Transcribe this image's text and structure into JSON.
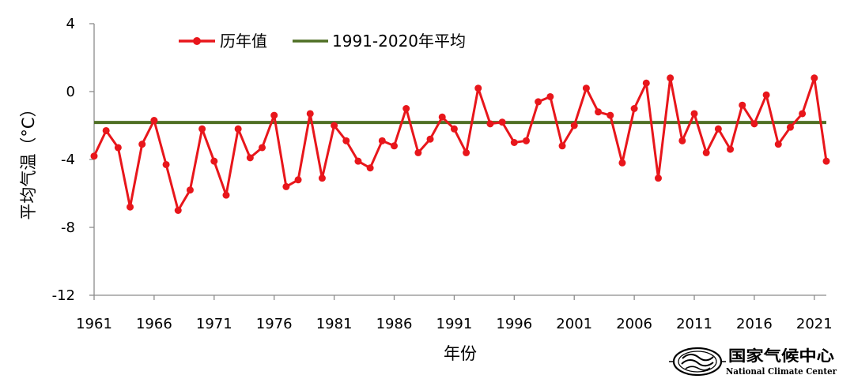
{
  "chart_data": {
    "type": "line",
    "title": "",
    "xlabel": "年份",
    "ylabel": "平均气温（°C）",
    "ylim": [
      -12,
      4
    ],
    "yticks": [
      "4",
      "0",
      "-4",
      "-8",
      "-12"
    ],
    "ytick_values": [
      4,
      0,
      -4,
      -8,
      -12
    ],
    "xlim": [
      1961,
      2022
    ],
    "xticks": [
      "1961",
      "1966",
      "1971",
      "1976",
      "1981",
      "1986",
      "1991",
      "1996",
      "2001",
      "2006",
      "2011",
      "2016",
      "2021"
    ],
    "xtick_values": [
      1961,
      1966,
      1971,
      1976,
      1981,
      1986,
      1991,
      1996,
      2001,
      2006,
      2011,
      2016,
      2021
    ],
    "legend_position": "top-left",
    "series": [
      {
        "name": "历年值",
        "color": "#e8161b",
        "marker": "circle",
        "x": [
          1961,
          1962,
          1963,
          1964,
          1965,
          1966,
          1967,
          1968,
          1969,
          1970,
          1971,
          1972,
          1973,
          1974,
          1975,
          1976,
          1977,
          1978,
          1979,
          1980,
          1981,
          1982,
          1983,
          1984,
          1985,
          1986,
          1987,
          1988,
          1989,
          1990,
          1991,
          1992,
          1993,
          1994,
          1995,
          1996,
          1997,
          1998,
          1999,
          2000,
          2001,
          2002,
          2003,
          2004,
          2005,
          2006,
          2007,
          2008,
          2009,
          2010,
          2011,
          2012,
          2013,
          2014,
          2015,
          2016,
          2017,
          2018,
          2019,
          2020,
          2021,
          2022
        ],
        "values": [
          -3.8,
          -2.3,
          -3.3,
          -6.8,
          -3.1,
          -1.7,
          -4.3,
          -7.0,
          -5.8,
          -2.2,
          -4.1,
          -6.1,
          -2.2,
          -3.9,
          -3.3,
          -1.4,
          -5.6,
          -5.2,
          -1.3,
          -5.1,
          -2.0,
          -2.9,
          -4.1,
          -4.5,
          -2.9,
          -3.2,
          -1.0,
          -3.6,
          -2.8,
          -1.5,
          -2.2,
          -3.6,
          0.2,
          -1.9,
          -1.8,
          -3.0,
          -2.9,
          -0.6,
          -0.3,
          -3.2,
          -2.0,
          0.2,
          -1.2,
          -1.4,
          -4.2,
          -1.0,
          0.5,
          -5.1,
          0.8,
          -2.9,
          -1.3,
          -3.6,
          -2.2,
          -3.4,
          -0.8,
          -1.9,
          -0.2,
          -3.1,
          -2.1,
          -1.3,
          0.8,
          -4.1
        ]
      },
      {
        "name": "1991-2020年平均",
        "color": "#4e6f24",
        "marker": "none",
        "x": [
          1961,
          2022
        ],
        "values": [
          -1.82,
          -1.82
        ]
      }
    ]
  },
  "logo": {
    "name_cn": "国家气候中心",
    "name_en": "National Climate Center"
  }
}
